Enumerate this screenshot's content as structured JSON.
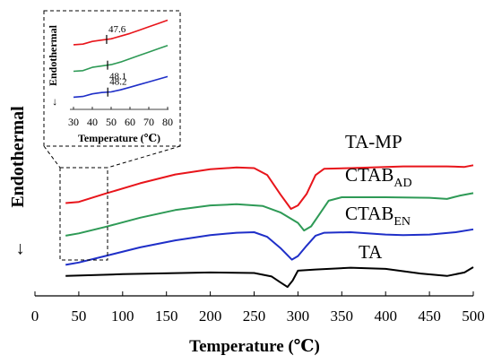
{
  "chart_data": [
    {
      "type": "line",
      "xlabel": "Temperature (℃)",
      "ylabel": "Endothermal",
      "y_arrow": "←",
      "xlim": [
        0,
        500
      ],
      "xticks": [
        0,
        50,
        100,
        150,
        200,
        250,
        300,
        350,
        400,
        450,
        500
      ],
      "series": [
        {
          "name": "TA-MP",
          "color": "#e8151b",
          "label": {
            "main": "TA-MP",
            "sub": ""
          },
          "points": [
            [
              35,
              11.0
            ],
            [
              50,
              11.2
            ],
            [
              80,
              12.6
            ],
            [
              120,
              14.4
            ],
            [
              160,
              15.9
            ],
            [
              200,
              16.8
            ],
            [
              230,
              17.1
            ],
            [
              250,
              17.0
            ],
            [
              265,
              15.8
            ],
            [
              280,
              12.5
            ],
            [
              292,
              10.0
            ],
            [
              300,
              10.6
            ],
            [
              310,
              12.6
            ],
            [
              320,
              15.8
            ],
            [
              330,
              16.9
            ],
            [
              360,
              17.0
            ],
            [
              420,
              17.3
            ],
            [
              470,
              17.3
            ],
            [
              490,
              17.2
            ],
            [
              500,
              17.5
            ]
          ]
        },
        {
          "name": "CTABAD",
          "color": "#2e9a56",
          "label": {
            "main": "CTAB",
            "sub": "AD"
          },
          "points": [
            [
              35,
              5.4
            ],
            [
              50,
              5.8
            ],
            [
              80,
              6.9
            ],
            [
              120,
              8.5
            ],
            [
              160,
              9.8
            ],
            [
              200,
              10.6
            ],
            [
              230,
              10.8
            ],
            [
              260,
              10.5
            ],
            [
              280,
              9.4
            ],
            [
              300,
              7.6
            ],
            [
              307,
              6.3
            ],
            [
              315,
              7.0
            ],
            [
              325,
              9.2
            ],
            [
              335,
              11.4
            ],
            [
              350,
              12.0
            ],
            [
              400,
              12.0
            ],
            [
              450,
              11.9
            ],
            [
              470,
              11.7
            ],
            [
              485,
              12.3
            ],
            [
              500,
              12.7
            ]
          ]
        },
        {
          "name": "CTABEN",
          "color": "#1f2fc8",
          "label": {
            "main": "CTAB",
            "sub": "EN"
          },
          "points": [
            [
              35,
              0.4
            ],
            [
              50,
              0.8
            ],
            [
              80,
              1.9
            ],
            [
              120,
              3.4
            ],
            [
              160,
              4.6
            ],
            [
              200,
              5.5
            ],
            [
              230,
              5.9
            ],
            [
              250,
              6.0
            ],
            [
              265,
              5.2
            ],
            [
              280,
              3.3
            ],
            [
              293,
              1.3
            ],
            [
              300,
              1.9
            ],
            [
              310,
              3.7
            ],
            [
              320,
              5.4
            ],
            [
              330,
              5.9
            ],
            [
              360,
              6.0
            ],
            [
              400,
              5.6
            ],
            [
              420,
              5.5
            ],
            [
              450,
              5.6
            ],
            [
              480,
              6.0
            ],
            [
              500,
              6.5
            ]
          ]
        },
        {
          "name": "TA",
          "color": "#000000",
          "label": {
            "main": "TA",
            "sub": ""
          },
          "points": [
            [
              35,
              -1.5
            ],
            [
              100,
              -1.2
            ],
            [
              200,
              -0.9
            ],
            [
              250,
              -1.0
            ],
            [
              270,
              -1.6
            ],
            [
              280,
              -2.6
            ],
            [
              288,
              -3.4
            ],
            [
              294,
              -2.3
            ],
            [
              300,
              -0.6
            ],
            [
              320,
              -0.4
            ],
            [
              360,
              -0.1
            ],
            [
              400,
              -0.3
            ],
            [
              440,
              -1.1
            ],
            [
              470,
              -1.5
            ],
            [
              490,
              -0.9
            ],
            [
              500,
              0.0
            ]
          ]
        }
      ]
    },
    {
      "type": "line",
      "xlabel": "Temperature (℃)",
      "ylabel": "Endothermal",
      "y_arrow": "←",
      "xlim": [
        30,
        80
      ],
      "xticks": [
        30,
        40,
        50,
        60,
        70,
        80
      ],
      "annotations": [
        {
          "series": "TA-MP",
          "x": 47.6,
          "text": "47.6"
        },
        {
          "series": "CTABAD",
          "x": 48.1,
          "text": "48.1"
        },
        {
          "series": "CTABEN",
          "x": 48.2,
          "text": "48.2"
        }
      ],
      "series": [
        {
          "name": "TA-MP",
          "color": "#e8151b",
          "points": [
            [
              30,
              9.2
            ],
            [
              35,
              9.3
            ],
            [
              40,
              9.7
            ],
            [
              45,
              9.9
            ],
            [
              50,
              10.1
            ],
            [
              55,
              10.5
            ],
            [
              60,
              10.9
            ],
            [
              65,
              11.4
            ],
            [
              70,
              11.9
            ],
            [
              75,
              12.4
            ],
            [
              80,
              12.9
            ]
          ]
        },
        {
          "name": "CTABAD",
          "color": "#2e9a56",
          "points": [
            [
              30,
              5.2
            ],
            [
              35,
              5.3
            ],
            [
              40,
              5.8
            ],
            [
              45,
              6.0
            ],
            [
              50,
              6.2
            ],
            [
              55,
              6.6
            ],
            [
              60,
              7.1
            ],
            [
              65,
              7.6
            ],
            [
              70,
              8.1
            ],
            [
              75,
              8.6
            ],
            [
              80,
              9.1
            ]
          ]
        },
        {
          "name": "CTABEN",
          "color": "#1f2fc8",
          "points": [
            [
              30,
              1.3
            ],
            [
              35,
              1.4
            ],
            [
              40,
              1.8
            ],
            [
              45,
              2.0
            ],
            [
              50,
              2.1
            ],
            [
              55,
              2.4
            ],
            [
              60,
              2.8
            ],
            [
              65,
              3.2
            ],
            [
              70,
              3.6
            ],
            [
              75,
              4.0
            ],
            [
              80,
              4.4
            ]
          ]
        }
      ]
    }
  ]
}
